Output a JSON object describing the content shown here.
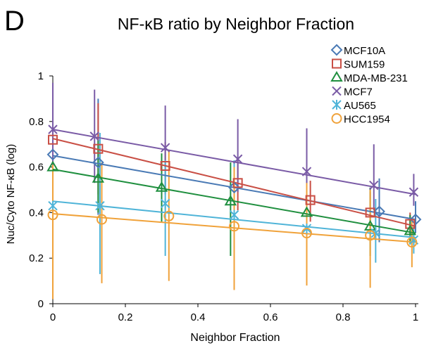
{
  "panel_label": "D",
  "chart_data": {
    "type": "scatter",
    "title": "NF-κB ratio by Neighbor Fraction",
    "xlabel": "Neighbor Fraction",
    "ylabel": "Nuc/Cyto NF-κB (log)",
    "xlim": [
      0,
      1
    ],
    "ylim": [
      0,
      1
    ],
    "x_ticks": [
      "0",
      "0.2",
      "0.4",
      "0.6",
      "0.8",
      "1"
    ],
    "y_ticks": [
      "0",
      "0.2",
      "0.4",
      "0.6",
      "0.8",
      "1"
    ],
    "grid": false,
    "legend_position": "top-right",
    "trendlines": "linear",
    "series": [
      {
        "name": "MCF10A",
        "color": "#4a7ab5",
        "marker": "diamond",
        "points": [
          {
            "x": 0.0,
            "y": 0.655,
            "lo": 0.05,
            "hi": 0.76
          },
          {
            "x": 0.125,
            "y": 0.62,
            "lo": 0.39,
            "hi": 0.9
          },
          {
            "x": 0.5,
            "y": 0.51,
            "lo": 0.34,
            "hi": 0.61
          },
          {
            "x": 0.9,
            "y": 0.405,
            "lo": 0.27,
            "hi": 0.55
          },
          {
            "x": 1.0,
            "y": 0.37,
            "lo": 0.31,
            "hi": 0.45
          }
        ],
        "trend": [
          0.65,
          0.37
        ]
      },
      {
        "name": "SUM159",
        "color": "#c94f45",
        "marker": "square",
        "points": [
          {
            "x": 0.0,
            "y": 0.72,
            "lo": 0.57,
            "hi": 0.85
          },
          {
            "x": 0.125,
            "y": 0.68,
            "lo": 0.48,
            "hi": 0.88
          },
          {
            "x": 0.31,
            "y": 0.605,
            "lo": 0.48,
            "hi": 0.71
          },
          {
            "x": 0.51,
            "y": 0.53,
            "lo": 0.41,
            "hi": 0.63
          },
          {
            "x": 0.71,
            "y": 0.455,
            "lo": 0.36,
            "hi": 0.54
          },
          {
            "x": 0.875,
            "y": 0.4,
            "lo": 0.31,
            "hi": 0.49
          },
          {
            "x": 0.985,
            "y": 0.35,
            "lo": 0.28,
            "hi": 0.4
          }
        ],
        "trend": [
          0.725,
          0.34
        ]
      },
      {
        "name": "MDA-MB-231",
        "color": "#1f8f3f",
        "marker": "triangle",
        "points": [
          {
            "x": 0.0,
            "y": 0.6,
            "lo": 0.45,
            "hi": 0.72
          },
          {
            "x": 0.125,
            "y": 0.55,
            "lo": 0.4,
            "hi": 0.72
          },
          {
            "x": 0.3,
            "y": 0.51,
            "lo": 0.36,
            "hi": 0.66
          },
          {
            "x": 0.49,
            "y": 0.45,
            "lo": 0.21,
            "hi": 0.62
          },
          {
            "x": 0.7,
            "y": 0.4,
            "lo": 0.21,
            "hi": 0.56
          },
          {
            "x": 0.875,
            "y": 0.34,
            "lo": 0.21,
            "hi": 0.51
          },
          {
            "x": 0.985,
            "y": 0.32,
            "lo": 0.26,
            "hi": 0.39
          }
        ],
        "trend": [
          0.59,
          0.31
        ]
      },
      {
        "name": "MCF7",
        "color": "#7a5ba6",
        "marker": "x",
        "points": [
          {
            "x": 0.0,
            "y": 0.765,
            "lo": 0.57,
            "hi": 0.97
          },
          {
            "x": 0.115,
            "y": 0.735,
            "lo": 0.53,
            "hi": 0.94
          },
          {
            "x": 0.31,
            "y": 0.685,
            "lo": 0.51,
            "hi": 0.87
          },
          {
            "x": 0.51,
            "y": 0.635,
            "lo": 0.49,
            "hi": 0.81
          },
          {
            "x": 0.7,
            "y": 0.58,
            "lo": 0.41,
            "hi": 0.77
          },
          {
            "x": 0.885,
            "y": 0.52,
            "lo": 0.41,
            "hi": 0.7
          },
          {
            "x": 0.995,
            "y": 0.49,
            "lo": 0.43,
            "hi": 0.57
          }
        ],
        "trend": [
          0.765,
          0.48
        ]
      },
      {
        "name": "AU565",
        "color": "#4fb4d8",
        "marker": "asterisk",
        "points": [
          {
            "x": 0.0,
            "y": 0.43,
            "lo": 0.2,
            "hi": 0.6
          },
          {
            "x": 0.13,
            "y": 0.43,
            "lo": 0.13,
            "hi": 0.75
          },
          {
            "x": 0.31,
            "y": 0.44,
            "lo": 0.21,
            "hi": 0.63
          },
          {
            "x": 0.5,
            "y": 0.39,
            "lo": 0.16,
            "hi": 0.63
          },
          {
            "x": 0.7,
            "y": 0.33,
            "lo": 0.17,
            "hi": 0.48
          },
          {
            "x": 0.89,
            "y": 0.31,
            "lo": 0.18,
            "hi": 0.46
          },
          {
            "x": 0.995,
            "y": 0.28,
            "lo": 0.22,
            "hi": 0.34
          }
        ],
        "trend": [
          0.45,
          0.29
        ]
      },
      {
        "name": "HCC1954",
        "color": "#f0a23a",
        "marker": "circle",
        "points": [
          {
            "x": 0.0,
            "y": 0.39,
            "lo": 0.02,
            "hi": 0.61
          },
          {
            "x": 0.135,
            "y": 0.37,
            "lo": 0.09,
            "hi": 0.62
          },
          {
            "x": 0.32,
            "y": 0.385,
            "lo": 0.1,
            "hi": 0.67
          },
          {
            "x": 0.5,
            "y": 0.34,
            "lo": 0.06,
            "hi": 0.6
          },
          {
            "x": 0.7,
            "y": 0.31,
            "lo": 0.08,
            "hi": 0.53
          },
          {
            "x": 0.875,
            "y": 0.3,
            "lo": 0.07,
            "hi": 0.5
          },
          {
            "x": 0.99,
            "y": 0.27,
            "lo": 0.16,
            "hi": 0.38
          }
        ],
        "trend": [
          0.395,
          0.27
        ]
      }
    ]
  }
}
